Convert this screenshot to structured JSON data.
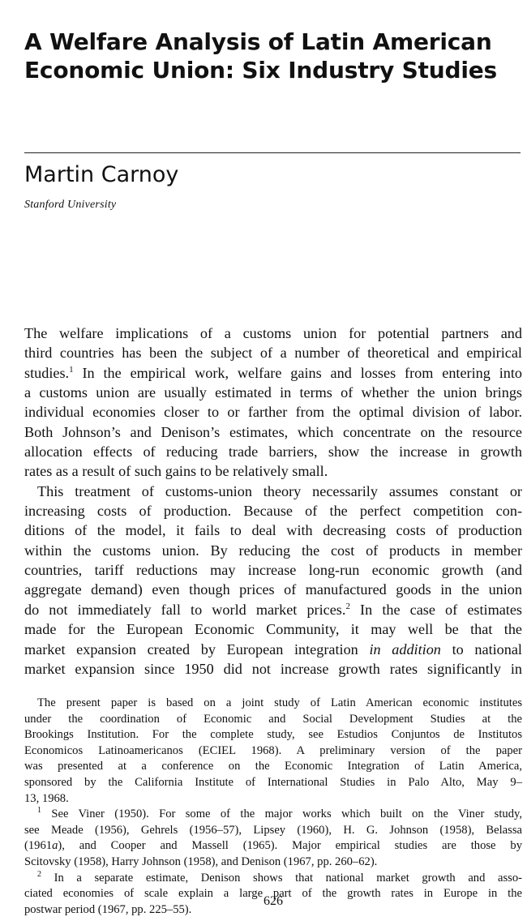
{
  "article": {
    "title_line1": "A Welfare Analysis of Latin American",
    "title_line2": "Economic Union: Six Industry Studies",
    "author": "Martin Carnoy",
    "affiliation": "Stanford University"
  },
  "body": {
    "p1": [
      "The welfare implications of a customs union for potential partners and",
      "third countries has been the subject of a number of theoretical and empirical",
      "studies.",
      "1",
      " In the empirical work, welfare gains and losses from entering into",
      "a customs union are usually estimated in terms of whether the union brings",
      "individual economies closer to or farther from the optimal division of labor.",
      "Both Johnson’s and Denison’s estimates, which concentrate on the resource",
      "allocation effects of reducing trade barriers, show the increase in growth",
      "rates as a result of such gains to be relatively small."
    ],
    "p2": [
      "This treatment of customs-union theory necessarily assumes constant or",
      "increasing costs of production. Because of the perfect competition con-",
      "ditions of the model, it fails to deal with decreasing costs of production",
      "within the customs union. By reducing the cost of products in member",
      "countries, tariff reductions may increase long-run economic growth (and",
      "aggregate demand) even though prices of manufactured goods in the union",
      "do not immediately fall to world market prices.",
      "2",
      " In the case of estimates",
      "made for the European Economic Community, it may well be that the",
      "market expansion created by European integration ",
      "in addition",
      " to national",
      "market expansion since 1950 did not increase growth rates significantly in"
    ]
  },
  "footnotes": {
    "note0": [
      "The present paper is based on a joint study of Latin American economic institutes",
      "under the coordination of Economic and Social Development Studies at the",
      "Brookings Institution. For the complete study, see Estudios Conjuntos de Institutos",
      "Economicos Latinoamericanos (ECIEL 1968). A preliminary version of the paper",
      "was presented at a conference on the Economic Integration of Latin America,",
      "sponsored by the California Institute of International Studies in Palo Alto, May 9–",
      "13, 1968."
    ],
    "note1_mark": "1",
    "note1": [
      " See Viner (1950). For some of the major works which built on the Viner study,",
      "see Meade (1956), Gehrels (1956–57), Lipsey (1960), H. G. Johnson (1958), Belassa",
      "(1961",
      "a",
      "), and Cooper and Massell (1965). Major empirical studies are those by",
      "Scitovsky (1958), Harry Johnson (1958), and Denison (1967, pp. 260–62)."
    ],
    "note2_mark": "2",
    "note2": [
      " In a separate estimate, Denison shows that national market growth and asso-",
      "ciated economies of scale explain a large part of the growth rates in Europe in the",
      "postwar period (1967, pp. 225–55)."
    ]
  },
  "page_number": "626"
}
